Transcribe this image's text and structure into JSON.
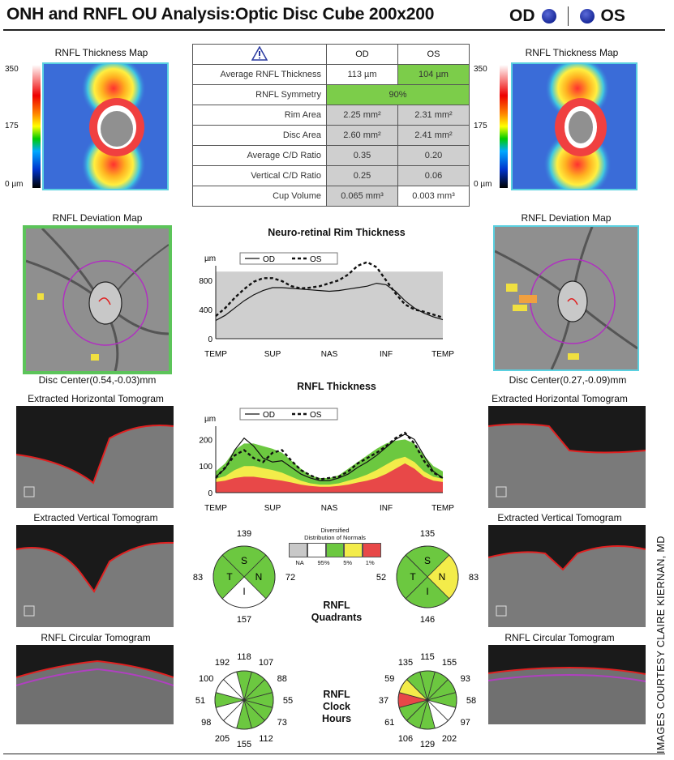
{
  "header": {
    "title": "ONH and RNFL OU Analysis:Optic Disc Cube 200x200",
    "od": "OD",
    "os": "OS"
  },
  "thickness_map": {
    "title": "RNFL Thickness Map",
    "scale_top": "350",
    "scale_mid": "175",
    "scale_bottom": "0 µm"
  },
  "table": {
    "col_od": "OD",
    "col_os": "OS",
    "rows": [
      {
        "label": "Average RNFL Thickness",
        "od": "113 µm",
        "os": "104 µm"
      },
      {
        "label": "RNFL Symmetry",
        "merged": "90%"
      },
      {
        "label": "Rim Area",
        "od": "2.25 mm²",
        "os": "2.31 mm²"
      },
      {
        "label": "Disc Area",
        "od": "2.60 mm²",
        "os": "2.41 mm²"
      },
      {
        "label": "Average C/D Ratio",
        "od": "0.35",
        "os": "0.20"
      },
      {
        "label": "Vertical C/D Ratio",
        "od": "0.25",
        "os": "0.06"
      },
      {
        "label": "Cup Volume",
        "od": "0.065 mm³",
        "os": "0.003 mm³"
      }
    ]
  },
  "deviation_map": {
    "title": "RNFL Deviation Map",
    "od_center": "Disc Center(0.54,-0.03)mm",
    "os_center": "Disc Center(0.27,-0.09)mm"
  },
  "tomograms": {
    "horizontal": "Extracted Horizontal Tomogram",
    "vertical": "Extracted Vertical Tomogram",
    "circular": "RNFL Circular Tomogram"
  },
  "chart_data": [
    {
      "type": "line",
      "title": "Neuro-retinal Rim Thickness",
      "ylabel": "µm",
      "yticks": [
        "0",
        "400",
        "800"
      ],
      "xticks": [
        "TEMP",
        "SUP",
        "NAS",
        "INF",
        "TEMP"
      ],
      "ylim": [
        0,
        1000
      ],
      "x": [
        0,
        1,
        2,
        3,
        4,
        5,
        6,
        7,
        8,
        9,
        10,
        11,
        12,
        13,
        14,
        15,
        16,
        17,
        18,
        19,
        20,
        21,
        22,
        23,
        24
      ],
      "series": [
        {
          "name": "OD",
          "style": "solid",
          "values": [
            250,
            320,
            420,
            520,
            600,
            660,
            700,
            700,
            690,
            680,
            670,
            660,
            650,
            660,
            680,
            700,
            720,
            760,
            740,
            650,
            520,
            420,
            350,
            300,
            260
          ]
        },
        {
          "name": "OS",
          "style": "dashed",
          "values": [
            310,
            420,
            560,
            680,
            780,
            830,
            830,
            790,
            720,
            690,
            700,
            720,
            760,
            800,
            880,
            1000,
            1050,
            980,
            800,
            620,
            470,
            400,
            370,
            330,
            290
          ]
        }
      ],
      "normal_band": {
        "low": 0,
        "high": 920
      }
    },
    {
      "type": "line",
      "title": "RNFL Thickness",
      "ylabel": "µm",
      "yticks": [
        "0",
        "100",
        "200"
      ],
      "xticks": [
        "TEMP",
        "SUP",
        "NAS",
        "INF",
        "TEMP"
      ],
      "ylim": [
        0,
        250
      ],
      "x": [
        0,
        1,
        2,
        3,
        4,
        5,
        6,
        7,
        8,
        9,
        10,
        11,
        12,
        13,
        14,
        15,
        16,
        17,
        18,
        19,
        20,
        21,
        22,
        23,
        24
      ],
      "series": [
        {
          "name": "OD",
          "style": "solid",
          "values": [
            60,
            90,
            160,
            205,
            175,
            130,
            115,
            120,
            95,
            70,
            55,
            45,
            45,
            55,
            70,
            95,
            115,
            140,
            170,
            200,
            220,
            200,
            140,
            80,
            55
          ]
        },
        {
          "name": "OS",
          "style": "dashed",
          "values": [
            55,
            95,
            140,
            160,
            130,
            115,
            150,
            160,
            120,
            85,
            65,
            50,
            55,
            60,
            80,
            110,
            130,
            150,
            175,
            205,
            225,
            185,
            120,
            75,
            55
          ]
        }
      ],
      "bands": {
        "red": [
          40,
          45,
          55,
          60,
          60,
          55,
          50,
          45,
          38,
          30,
          25,
          22,
          22,
          25,
          30,
          38,
          45,
          55,
          70,
          90,
          110,
          90,
          60,
          45,
          40
        ],
        "yellow": [
          52,
          62,
          85,
          100,
          100,
          92,
          85,
          75,
          60,
          45,
          35,
          30,
          30,
          35,
          45,
          55,
          68,
          85,
          105,
          125,
          135,
          115,
          80,
          60,
          52
        ],
        "green": [
          80,
          110,
          160,
          185,
          185,
          175,
          165,
          150,
          120,
          90,
          65,
          55,
          55,
          65,
          90,
          115,
          140,
          165,
          185,
          195,
          200,
          185,
          140,
          100,
          80
        ]
      }
    }
  ],
  "legend": {
    "title": "Distribution of Normals",
    "na": "NA",
    "p95": "95%",
    "p5": "5%",
    "p1": "1%",
    "label_prefix": "Diversified"
  },
  "quadrants": {
    "label_line1": "RNFL",
    "label_line2": "Quadrants",
    "od": {
      "top": "139",
      "left": "83",
      "right": "72",
      "bottom": "157",
      "s": "S",
      "t": "T",
      "n": "N",
      "i": "I"
    },
    "os": {
      "top": "135",
      "left": "52",
      "right": "83",
      "bottom": "146",
      "s": "S",
      "t": "T",
      "n": "N",
      "i": "I"
    }
  },
  "clock": {
    "label_line1": "RNFL",
    "label_line2": "Clock",
    "label_line3": "Hours",
    "od": [
      "118",
      "107",
      "88",
      "55",
      "73",
      "112",
      "155",
      "205",
      "98",
      "51",
      "100",
      "192"
    ],
    "os": [
      "115",
      "155",
      "93",
      "58",
      "97",
      "202",
      "129",
      "106",
      "61",
      "37",
      "59",
      "135"
    ]
  },
  "credit": "IMAGES COURTESY CLAIRE KIERNAN, MD",
  "colors": {
    "green": "#6cc840",
    "yellow": "#f3ec4a",
    "red": "#e84848",
    "gray": "#cfcfcf",
    "cyan": "#5ad0e0"
  }
}
